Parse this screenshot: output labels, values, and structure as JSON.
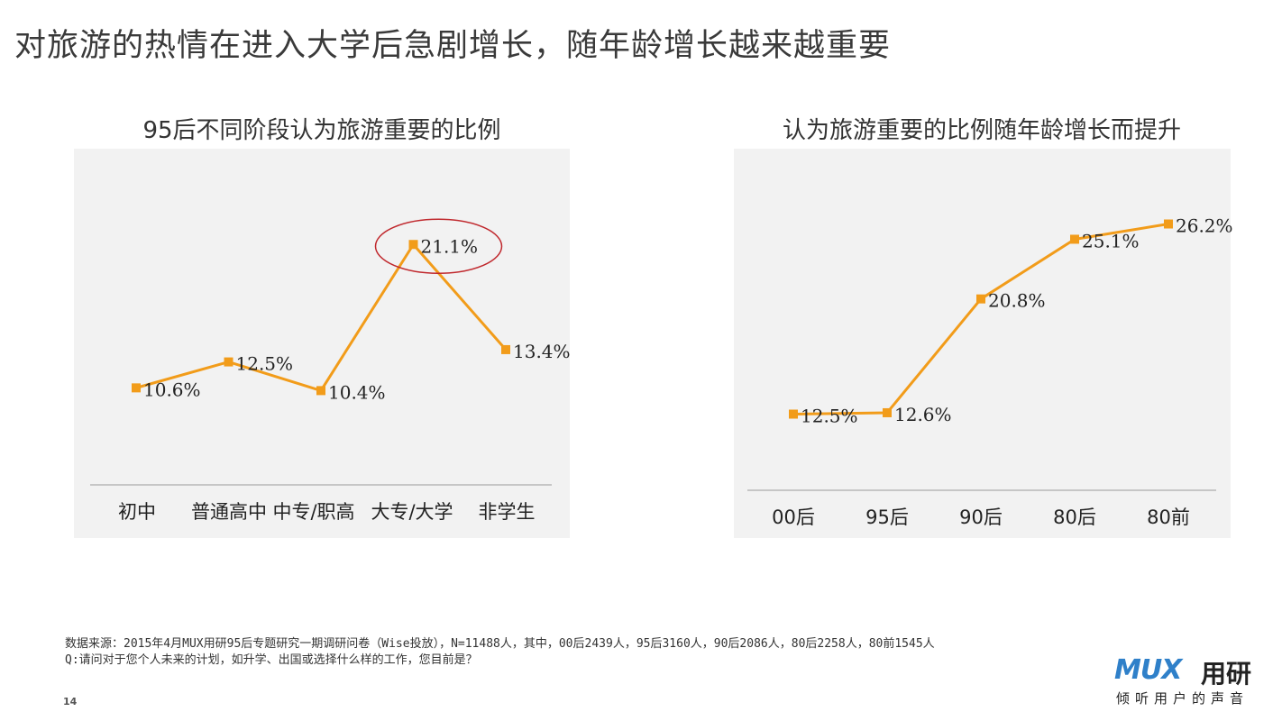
{
  "page": {
    "title": "对旅游的热情在进入大学后急剧增长，随年龄增长越来越重要",
    "page_number": "14"
  },
  "footer": {
    "source": "数据来源：2015年4月MUX用研95后专题研究一期调研问卷（Wise投放），N=11488人，其中，00后2439人，95后3160人，90后2086人，80后2258人，80前1545人",
    "question": "Q:请问对于您个人未来的计划，如升学、出国或选择什么样的工作，您目前是？"
  },
  "logo": {
    "mark": "MUX",
    "name": "用研",
    "tagline": "倾听用户的声音"
  },
  "colors": {
    "line": "#f29c1a",
    "highlight_circle": "#c0282d",
    "panel_bg": "#f2f2f2"
  },
  "chart_data": [
    {
      "type": "line",
      "title": "95后不同阶段认为旅游重要的比例",
      "categories": [
        "初中",
        "普通高中",
        "中专/职高",
        "大专/大学",
        "非学生"
      ],
      "values": [
        10.6,
        12.5,
        10.4,
        21.1,
        13.4
      ],
      "labels": [
        "10.6%",
        "12.5%",
        "10.4%",
        "21.1%",
        "13.4%"
      ],
      "highlight_index": 3,
      "ylim": [
        0,
        26
      ],
      "grid": false
    },
    {
      "type": "line",
      "title": "认为旅游重要的比例随年龄增长而提升",
      "categories": [
        "00后",
        "95后",
        "90后",
        "80后",
        "80前"
      ],
      "values": [
        12.5,
        12.6,
        20.8,
        25.1,
        26.2
      ],
      "labels": [
        "12.5%",
        "12.6%",
        "20.8%",
        "25.1%",
        "26.2%"
      ],
      "ylim": [
        0,
        30
      ],
      "grid": false
    }
  ]
}
